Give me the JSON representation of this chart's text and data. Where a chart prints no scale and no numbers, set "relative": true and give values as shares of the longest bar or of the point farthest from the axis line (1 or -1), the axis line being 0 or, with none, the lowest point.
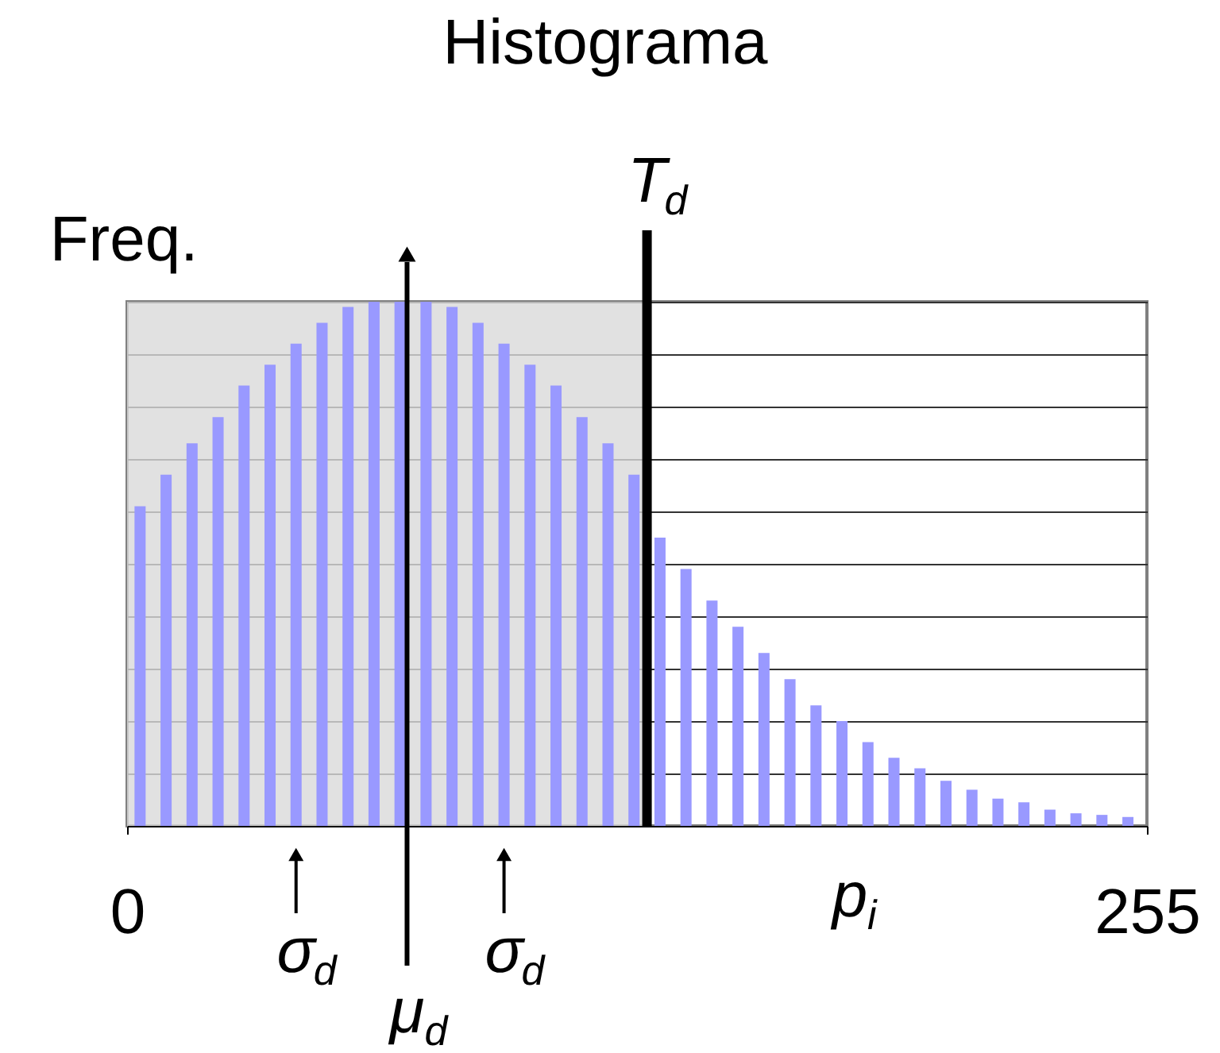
{
  "chart_data": {
    "type": "bar",
    "title": "Histograma",
    "ylabel": "Freq.",
    "xlabel": "p$_{i}$",
    "relative": true,
    "x": [
      3.25,
      9.75,
      16.25,
      22.75,
      29.25,
      35.75,
      42.25,
      48.75,
      55.25,
      61.75,
      68.25,
      74.75,
      81.25,
      87.75,
      94.25,
      100.75,
      107.25,
      113.75,
      120.25,
      126.75,
      133.25,
      139.75,
      146.25,
      152.75,
      159.25,
      165.75,
      172.25,
      178.75,
      185.25,
      191.75,
      198.25,
      204.75,
      211.25,
      217.75,
      224.25,
      230.75,
      237.25,
      243.75,
      250.25
    ],
    "values": [
      0.61,
      0.67,
      0.73,
      0.78,
      0.84,
      0.88,
      0.92,
      0.96,
      0.99,
      1.0,
      1.0,
      1.0,
      0.99,
      0.96,
      0.92,
      0.88,
      0.84,
      0.78,
      0.73,
      0.67,
      0.55,
      0.49,
      0.43,
      0.38,
      0.33,
      0.28,
      0.23,
      0.2,
      0.16,
      0.13,
      0.11,
      0.086,
      0.069,
      0.052,
      0.045,
      0.031,
      0.024,
      0.021,
      0.017
    ],
    "color": "#9999ff",
    "xlim": [
      0,
      255
    ],
    "xticks": [
      0,
      255
    ],
    "grid": "y",
    "bands": [
      {
        "axis": "x",
        "from": 0,
        "to": 130,
        "color": "#d9d9d9"
      }
    ],
    "ref_lines": [
      {
        "axis": "x",
        "value": 130,
        "label": "T$_{d}$",
        "color": "#000000"
      },
      {
        "axis": "x",
        "value": 70,
        "label": "μ$_{d}$",
        "color": "#000000"
      }
    ],
    "annotations": [
      {
        "text": "σ$_{d}$",
        "x": 42.25
      },
      {
        "text": "σ$_{d}$",
        "x": 94.25
      }
    ]
  }
}
